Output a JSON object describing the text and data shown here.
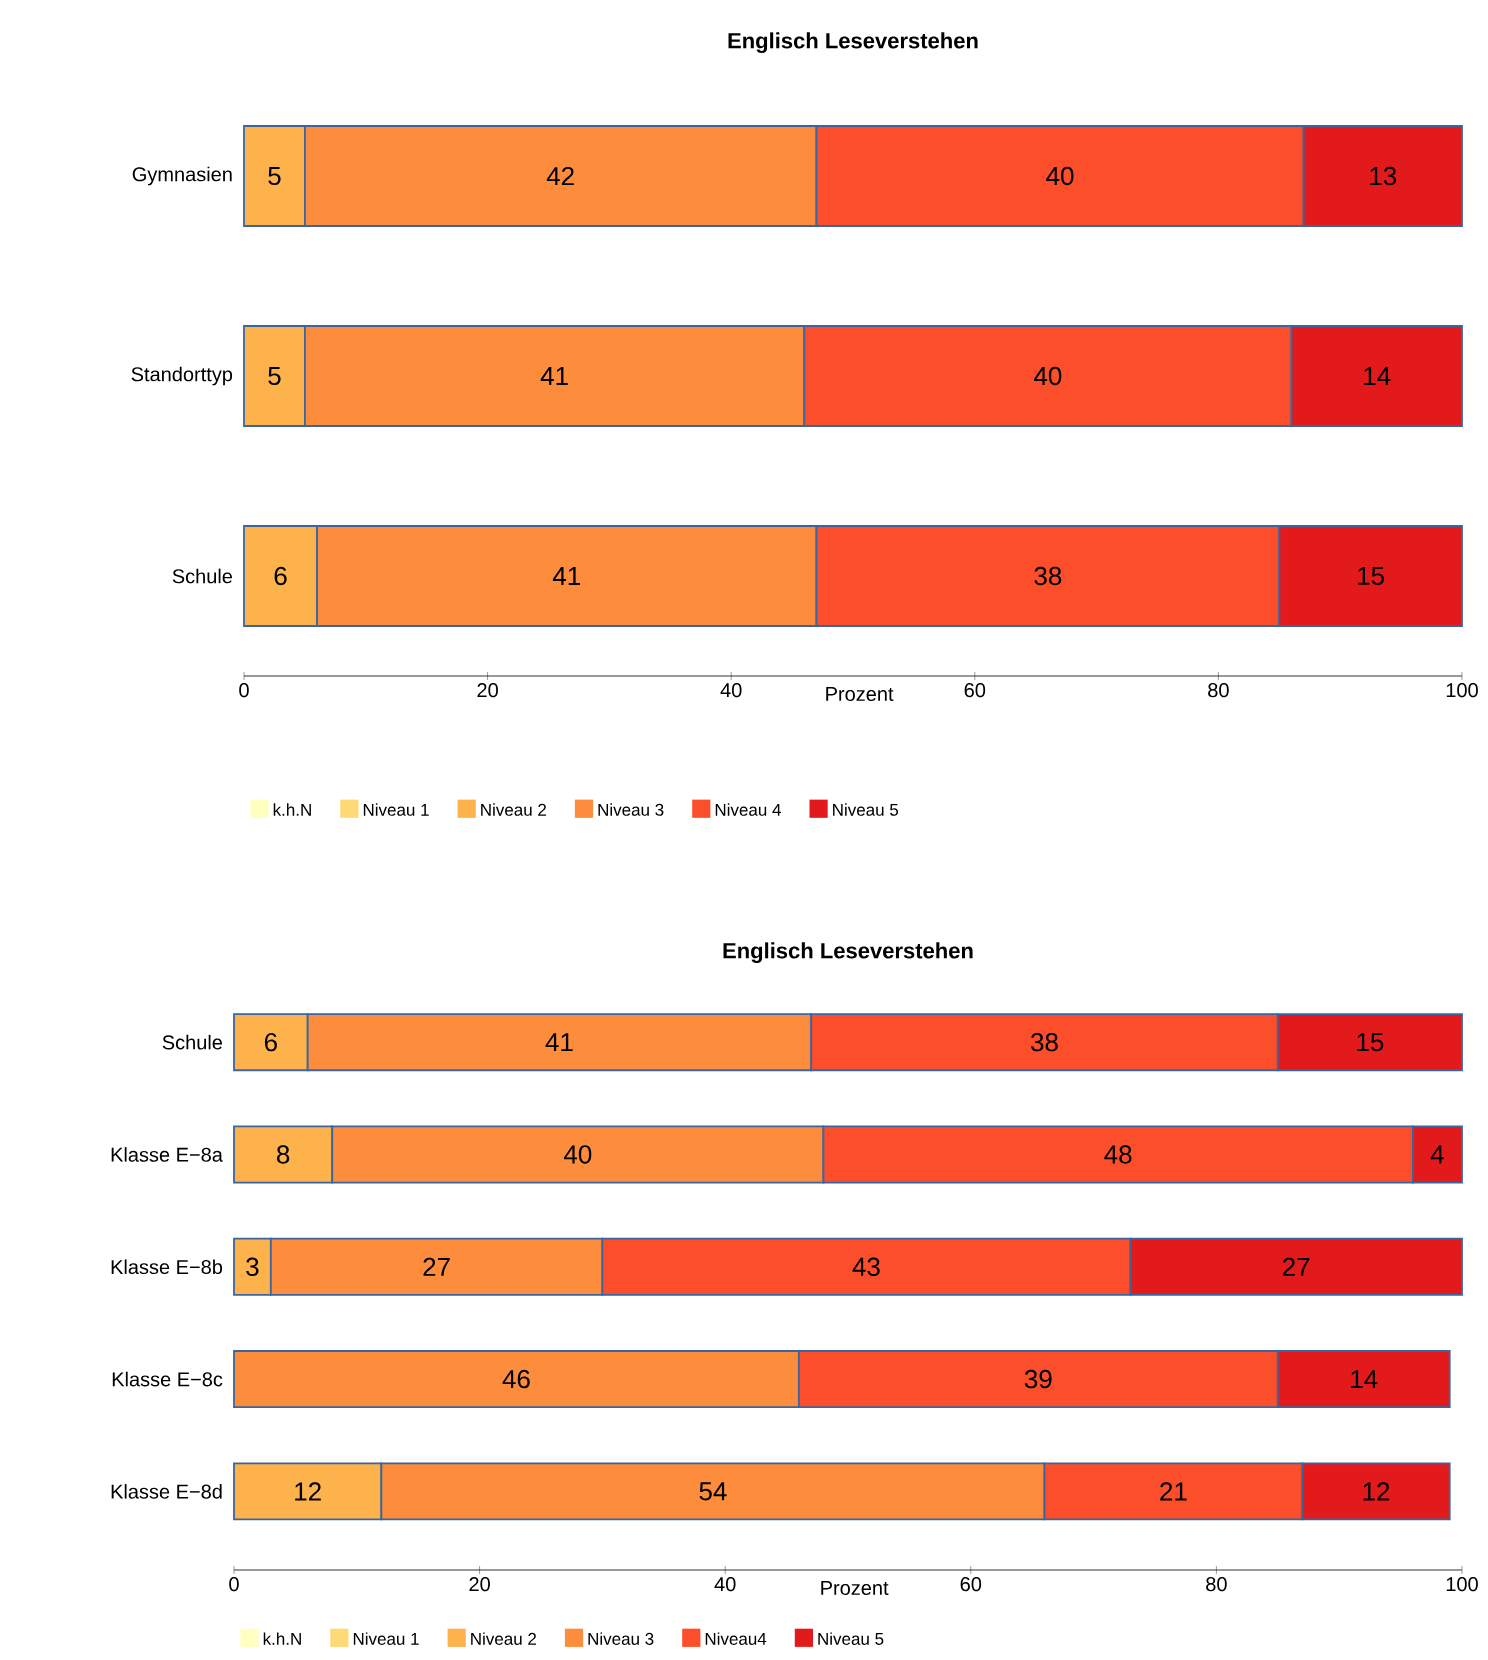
{
  "chart_data": [
    {
      "type": "bar",
      "title": "Englisch Leseverstehen",
      "xlabel": "Prozent",
      "orientation": "horizontal",
      "stacked": true,
      "data_labels": true,
      "legend": "bottom",
      "categories": [
        "Gymnasien",
        "Standorttyp",
        "Schule"
      ],
      "xlim": [
        0,
        100
      ],
      "xticks": [
        0,
        20,
        40,
        60,
        80,
        100
      ],
      "series": [
        {
          "name": "k.h.N",
          "color": "#ffffc0",
          "values": [
            null,
            null,
            null
          ]
        },
        {
          "name": "Niveau 1",
          "color": "#fed976",
          "values": [
            null,
            null,
            null
          ]
        },
        {
          "name": "Niveau 2",
          "color": "#feb24c",
          "values": [
            5,
            5,
            6
          ]
        },
        {
          "name": "Niveau 3",
          "color": "#fd8d3c",
          "values": [
            42,
            41,
            41
          ]
        },
        {
          "name": "Niveau 4",
          "color": "#fc4e2a",
          "values": [
            40,
            40,
            38
          ]
        },
        {
          "name": "Niveau 5",
          "color": "#e31a1c",
          "values": [
            13,
            14,
            15
          ]
        }
      ]
    },
    {
      "type": "bar",
      "title": "Englisch Leseverstehen",
      "xlabel": "Prozent",
      "orientation": "horizontal",
      "stacked": true,
      "data_labels": true,
      "legend": "bottom",
      "categories": [
        "Schule",
        "Klasse  E−8a",
        "Klasse  E−8b",
        "Klasse  E−8c",
        "Klasse  E−8d"
      ],
      "xlim": [
        0,
        100
      ],
      "xticks": [
        0,
        20,
        40,
        60,
        80,
        100
      ],
      "series": [
        {
          "name": "k.h.N",
          "color": "#ffffc0",
          "values": [
            null,
            null,
            null,
            null,
            null
          ]
        },
        {
          "name": "Niveau 1",
          "color": "#fed976",
          "values": [
            null,
            null,
            null,
            null,
            null
          ]
        },
        {
          "name": "Niveau 2",
          "color": "#feb24c",
          "values": [
            6,
            8,
            3,
            null,
            12
          ]
        },
        {
          "name": "Niveau 3",
          "color": "#fd8d3c",
          "values": [
            41,
            40,
            27,
            46,
            54
          ]
        },
        {
          "name": "Niveau4",
          "color": "#fc4e2a",
          "values": [
            38,
            48,
            43,
            39,
            21
          ]
        },
        {
          "name": "Niveau 5",
          "color": "#e31a1c",
          "values": [
            15,
            4,
            27,
            14,
            12
          ]
        }
      ]
    }
  ]
}
